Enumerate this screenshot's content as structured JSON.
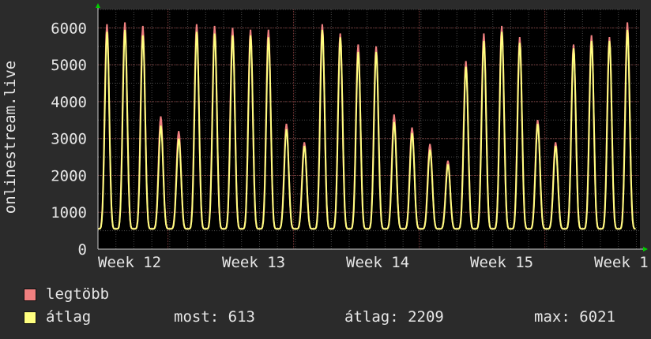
{
  "chart_data": {
    "type": "line",
    "ylabel": "onlinestream.live",
    "ylim": [
      0,
      6500
    ],
    "yticks": [
      0,
      1000,
      2000,
      3000,
      4000,
      5000,
      6000
    ],
    "xticks": [
      "Week 12",
      "Week 13",
      "Week 14",
      "Week 15",
      "Week 1"
    ],
    "grid": true,
    "legend_placement": "bottom-left",
    "series": [
      {
        "name": "legtöbb",
        "color": "#f08080",
        "daily_peaks": [
          6100,
          6150,
          6050,
          3600,
          3200,
          6100,
          6050,
          6000,
          5950,
          5950,
          3400,
          2900,
          6100,
          5850,
          5550,
          5500,
          3650,
          3300,
          2850,
          2400,
          5100,
          5850,
          6050,
          5750,
          3500,
          2900,
          5550,
          5800,
          5750,
          6150
        ]
      },
      {
        "name": "átlag",
        "color": "#ffff80",
        "daily_peaks": [
          5900,
          5950,
          5800,
          3350,
          3000,
          5900,
          5850,
          5800,
          5800,
          5750,
          3250,
          2800,
          5950,
          5750,
          5350,
          5350,
          3450,
          3150,
          2700,
          2300,
          4950,
          5650,
          5900,
          5600,
          3400,
          2800,
          5450,
          5650,
          5650,
          5950
        ]
      }
    ],
    "daily_minimum": 550
  },
  "legend": {
    "items": [
      {
        "label": "legtöbb",
        "color": "#f08080"
      },
      {
        "label": "átlag",
        "color": "#ffff80"
      }
    ],
    "stats": {
      "most": "most: 613",
      "atlag": "átlag: 2209",
      "max": "max: 6021"
    }
  }
}
